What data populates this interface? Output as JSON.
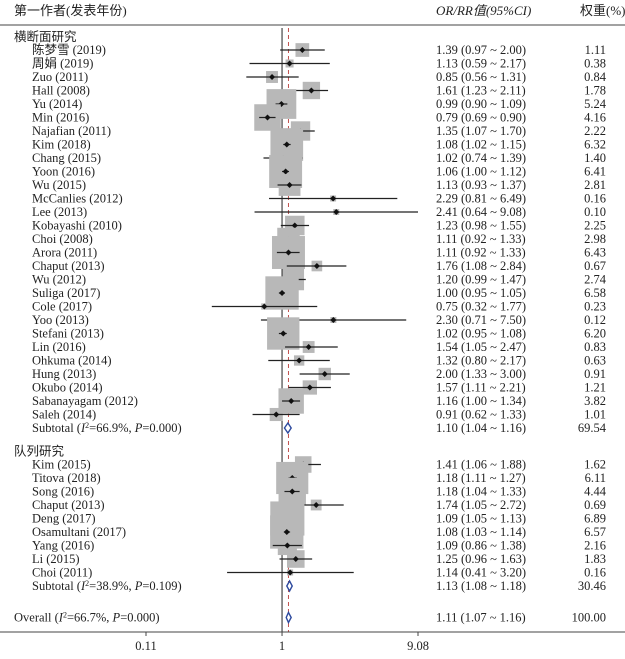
{
  "chart_data": {
    "type": "forest",
    "headers": {
      "study": "第一作者(发表年份)",
      "estimate": "OR/RR值(95%CI)",
      "weight": "权重(%)"
    },
    "x_axis": {
      "scale": "log",
      "ticks": [
        {
          "value": 0.11,
          "label": "0.11"
        },
        {
          "value": 1,
          "label": "1"
        },
        {
          "value": 9.08,
          "label": "9.08"
        }
      ],
      "range": [
        0.11,
        9.08
      ],
      "reference_line": 1,
      "overall_dashed_line": 1.11
    },
    "groups": [
      {
        "name": "横断面研究",
        "studies": [
          {
            "label": "陈梦雪 (2019)",
            "est": 1.39,
            "lo": 0.97,
            "hi": 2.0,
            "ci_text": "1.39 (0.97 ~ 2.00)",
            "weight": 1.11,
            "weight_text": "1.11"
          },
          {
            "label": "周娟 (2019)",
            "est": 1.13,
            "lo": 0.59,
            "hi": 2.17,
            "ci_text": "1.13 (0.59 ~ 2.17)",
            "weight": 0.38,
            "weight_text": "0.38"
          },
          {
            "label": "Zuo (2011)",
            "est": 0.85,
            "lo": 0.56,
            "hi": 1.31,
            "ci_text": "0.85 (0.56 ~ 1.31)",
            "weight": 0.84,
            "weight_text": "0.84"
          },
          {
            "label": "Hall (2008)",
            "est": 1.61,
            "lo": 1.23,
            "hi": 2.11,
            "ci_text": "1.61 (1.23 ~ 2.11)",
            "weight": 1.78,
            "weight_text": "1.78"
          },
          {
            "label": "Yu (2014)",
            "est": 0.99,
            "lo": 0.9,
            "hi": 1.09,
            "ci_text": "0.99 (0.90 ~ 1.09)",
            "weight": 5.24,
            "weight_text": "5.24"
          },
          {
            "label": "Min (2016)",
            "est": 0.79,
            "lo": 0.69,
            "hi": 0.9,
            "ci_text": "0.79 (0.69 ~ 0.90)",
            "weight": 4.16,
            "weight_text": "4.16"
          },
          {
            "label": "Najafian (2011)",
            "est": 1.35,
            "lo": 1.07,
            "hi": 1.7,
            "ci_text": "1.35 (1.07 ~ 1.70)",
            "weight": 2.22,
            "weight_text": "2.22"
          },
          {
            "label": "Kim (2018)",
            "est": 1.08,
            "lo": 1.02,
            "hi": 1.15,
            "ci_text": "1.08 (1.02 ~ 1.15)",
            "weight": 6.32,
            "weight_text": "6.32"
          },
          {
            "label": "Chang (2015)",
            "est": 1.02,
            "lo": 0.74,
            "hi": 1.39,
            "ci_text": "1.02 (0.74 ~ 1.39)",
            "weight": 1.4,
            "weight_text": "1.40"
          },
          {
            "label": "Yoon (2016)",
            "est": 1.06,
            "lo": 1.0,
            "hi": 1.12,
            "ci_text": "1.06 (1.00 ~ 1.12)",
            "weight": 6.41,
            "weight_text": "6.41"
          },
          {
            "label": "Wu (2015)",
            "est": 1.13,
            "lo": 0.93,
            "hi": 1.37,
            "ci_text": "1.13 (0.93 ~ 1.37)",
            "weight": 2.81,
            "weight_text": "2.81"
          },
          {
            "label": "McCanlies (2012)",
            "est": 2.29,
            "lo": 0.81,
            "hi": 6.49,
            "ci_text": "2.29 (0.81 ~ 6.49)",
            "weight": 0.16,
            "weight_text": "0.16"
          },
          {
            "label": "Lee (2013)",
            "est": 2.41,
            "lo": 0.64,
            "hi": 9.08,
            "ci_text": "2.41 (0.64 ~ 9.08)",
            "weight": 0.1,
            "weight_text": "0.10"
          },
          {
            "label": "Kobayashi (2010)",
            "est": 1.23,
            "lo": 0.98,
            "hi": 1.55,
            "ci_text": "1.23 (0.98 ~ 1.55)",
            "weight": 2.25,
            "weight_text": "2.25"
          },
          {
            "label": "Choi (2008)",
            "est": 1.11,
            "lo": 0.92,
            "hi": 1.33,
            "ci_text": "1.11 (0.92 ~ 1.33)",
            "weight": 2.98,
            "weight_text": "2.98"
          },
          {
            "label": "Arora (2011)",
            "est": 1.11,
            "lo": 0.92,
            "hi": 1.33,
            "ci_text": "1.11 (0.92 ~ 1.33)",
            "weight": 6.43,
            "weight_text": "6.43"
          },
          {
            "label": "Chaput (2013)",
            "est": 1.76,
            "lo": 1.08,
            "hi": 2.84,
            "ci_text": "1.76 (1.08 ~ 2.84)",
            "weight": 0.67,
            "weight_text": "0.67"
          },
          {
            "label": "Wu (2012)",
            "est": 1.2,
            "lo": 0.99,
            "hi": 1.47,
            "ci_text": "1.20 (0.99 ~ 1.47)",
            "weight": 2.74,
            "weight_text": "2.74"
          },
          {
            "label": "Suliga (2017)",
            "est": 1.0,
            "lo": 0.95,
            "hi": 1.05,
            "ci_text": "1.00 (0.95 ~ 1.05)",
            "weight": 6.58,
            "weight_text": "6.58"
          },
          {
            "label": "Cole (2017)",
            "est": 0.75,
            "lo": 0.32,
            "hi": 1.77,
            "ci_text": "0.75 (0.32 ~ 1.77)",
            "weight": 0.23,
            "weight_text": "0.23"
          },
          {
            "label": "Yoo (2013)",
            "est": 2.3,
            "lo": 0.71,
            "hi": 7.5,
            "ci_text": "2.30 (0.71 ~ 7.50)",
            "weight": 0.12,
            "weight_text": "0.12"
          },
          {
            "label": "Stefani (2013)",
            "est": 1.02,
            "lo": 0.95,
            "hi": 1.08,
            "ci_text": "1.02 (0.95 ~ 1.08)",
            "weight": 6.2,
            "weight_text": "6.20"
          },
          {
            "label": "Lin (2016)",
            "est": 1.54,
            "lo": 1.05,
            "hi": 2.47,
            "ci_text": "1.54 (1.05 ~ 2.47)",
            "weight": 0.83,
            "weight_text": "0.83"
          },
          {
            "label": "Ohkuma (2014)",
            "est": 1.32,
            "lo": 0.8,
            "hi": 2.17,
            "ci_text": "1.32 (0.80 ~ 2.17)",
            "weight": 0.63,
            "weight_text": "0.63"
          },
          {
            "label": "Hung (2013)",
            "est": 2.0,
            "lo": 1.33,
            "hi": 3.0,
            "ci_text": "2.00 (1.33 ~ 3.00)",
            "weight": 0.91,
            "weight_text": "0.91"
          },
          {
            "label": "Okubo (2014)",
            "est": 1.57,
            "lo": 1.11,
            "hi": 2.21,
            "ci_text": "1.57 (1.11 ~ 2.21)",
            "weight": 1.21,
            "weight_text": "1.21"
          },
          {
            "label": "Sabanayagam (2012)",
            "est": 1.16,
            "lo": 1.0,
            "hi": 1.34,
            "ci_text": "1.16 (1.00 ~ 1.34)",
            "weight": 3.82,
            "weight_text": "3.82"
          },
          {
            "label": "Saleh (2014)",
            "est": 0.91,
            "lo": 0.62,
            "hi": 1.33,
            "ci_text": "0.91 (0.62 ~ 1.33)",
            "weight": 1.01,
            "weight_text": "1.01"
          }
        ],
        "subtotal": {
          "prefix": "Subtotal (",
          "italic_i": "I",
          "stats": "=66.9%, ",
          "italic_p": "P",
          "pval": "=0.000)",
          "est": 1.1,
          "lo": 1.04,
          "hi": 1.16,
          "ci_text": "1.10 (1.04 ~ 1.16)",
          "weight_text": "69.54"
        }
      },
      {
        "name": "队列研究",
        "studies": [
          {
            "label": "Kim (2015)",
            "est": 1.41,
            "lo": 1.06,
            "hi": 1.88,
            "ci_text": "1.41 (1.06 ~ 1.88)",
            "weight": 1.62,
            "weight_text": "1.62"
          },
          {
            "label": "Titova (2018)",
            "est": 1.18,
            "lo": 1.11,
            "hi": 1.27,
            "ci_text": "1.18 (1.11 ~ 1.27)",
            "weight": 6.11,
            "weight_text": "6.11"
          },
          {
            "label": "Song (2016)",
            "est": 1.18,
            "lo": 1.04,
            "hi": 1.33,
            "ci_text": "1.18 (1.04 ~ 1.33)",
            "weight": 4.44,
            "weight_text": "4.44"
          },
          {
            "label": "Chaput (2013)",
            "est": 1.74,
            "lo": 1.05,
            "hi": 2.72,
            "ci_text": "1.74 (1.05 ~ 2.72)",
            "weight": 0.69,
            "weight_text": "0.69"
          },
          {
            "label": "Deng (2017)",
            "est": 1.09,
            "lo": 1.05,
            "hi": 1.13,
            "ci_text": "1.09 (1.05 ~ 1.13)",
            "weight": 6.89,
            "weight_text": "6.89"
          },
          {
            "label": "Osamultani (2017)",
            "est": 1.08,
            "lo": 1.03,
            "hi": 1.14,
            "ci_text": "1.08 (1.03 ~ 1.14)",
            "weight": 6.57,
            "weight_text": "6.57"
          },
          {
            "label": "Yang (2016)",
            "est": 1.09,
            "lo": 0.86,
            "hi": 1.38,
            "ci_text": "1.09 (0.86 ~ 1.38)",
            "weight": 2.16,
            "weight_text": "2.16"
          },
          {
            "label": "Li (2015)",
            "est": 1.25,
            "lo": 0.96,
            "hi": 1.63,
            "ci_text": "1.25 (0.96 ~ 1.63)",
            "weight": 1.83,
            "weight_text": "1.83"
          },
          {
            "label": "Choi (2011)",
            "est": 1.14,
            "lo": 0.41,
            "hi": 3.2,
            "ci_text": "1.14 (0.41 ~ 3.20)",
            "weight": 0.16,
            "weight_text": "0.16"
          }
        ],
        "subtotal": {
          "prefix": "Subtotal (",
          "italic_i": "I",
          "stats": "=38.9%, ",
          "italic_p": "P",
          "pval": "=0.109)",
          "est": 1.13,
          "lo": 1.08,
          "hi": 1.18,
          "ci_text": "1.13 (1.08 ~ 1.18)",
          "weight_text": "30.46"
        }
      }
    ],
    "overall": {
      "prefix": "Overall (",
      "italic_i": "I",
      "stats": "=66.7%, ",
      "italic_p": "P",
      "pval": "=0.000)",
      "est": 1.11,
      "lo": 1.07,
      "hi": 1.16,
      "ci_text": "1.11 (1.07 ~ 1.16)",
      "weight_text": "100.00"
    },
    "colors": {
      "box": "#b8b8b8",
      "line": "#222222",
      "reference": "#222222",
      "dashed": "#c0504d",
      "diamond": "#2e4a9e"
    }
  }
}
